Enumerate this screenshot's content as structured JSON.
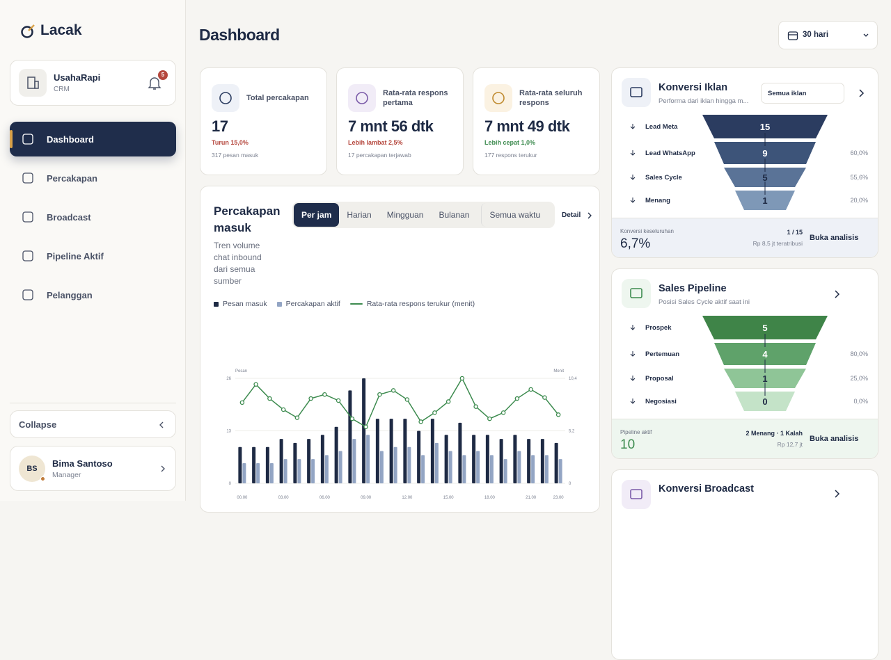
{
  "sidebar": {
    "logo": "Lacak",
    "org": {
      "name": "UsahaRapi",
      "role": "CRM",
      "badge": "5"
    },
    "nav": [
      "Dashboard",
      "Percakapan",
      "Broadcast",
      "Pipeline Aktif",
      "Pelanggan"
    ],
    "active": 0,
    "collapse": "Collapse",
    "user": {
      "initials": "BS",
      "name": "Bima Santoso",
      "role": "Manager"
    }
  },
  "header": {
    "title": "Dashboard",
    "range": "30 hari"
  },
  "stats": [
    {
      "label": "Total percakapan",
      "value": "17",
      "delta": "Turun 15,0%",
      "tone": "bad",
      "note": "317 pesan masuk"
    },
    {
      "label": "Rata-rata respons pertama",
      "value": "7 mnt 56 dtk",
      "delta": "Lebih lambat 2,5%",
      "tone": "bad",
      "note": "17 percakapan terjawab"
    },
    {
      "label": "Rata-rata seluruh respons",
      "value": "7 mnt 49 dtk",
      "delta": "Lebih cepat 1,0%",
      "tone": "good",
      "note": "177 respons terukur"
    }
  ],
  "chart_card": {
    "title": "Percakapan masuk",
    "description": "Tren volume chat inbound dari semua sumber",
    "tabs": [
      "Per jam",
      "Harian",
      "Mingguan",
      "Bulanan",
      "Semua waktu"
    ],
    "active_tab": 0,
    "detail": "Detail"
  },
  "chart_data": {
    "type": "bar",
    "y_label": "Pesan",
    "y2_label": "Menit",
    "categories": [
      "00.00",
      null,
      null,
      "03.00",
      null,
      null,
      "06.00",
      null,
      null,
      "09.00",
      null,
      null,
      "12.00",
      null,
      null,
      "15.00",
      null,
      null,
      "18.00",
      null,
      null,
      "21.00",
      null,
      "23.00"
    ],
    "series": [
      {
        "name": "Pesan masuk",
        "type": "bar",
        "color": "#1e2a44",
        "values": [
          9,
          9,
          9,
          11,
          10,
          11,
          12,
          14,
          23,
          26,
          16,
          16,
          16,
          13,
          16,
          12,
          15,
          12,
          12,
          11,
          12,
          11,
          11,
          10
        ]
      },
      {
        "name": "Percakapan aktif",
        "type": "bar",
        "color": "#93a5c4",
        "values": [
          5,
          5,
          5,
          6,
          6,
          6,
          7,
          8,
          11,
          12,
          8,
          9,
          9,
          7,
          10,
          8,
          7,
          8,
          7,
          6,
          8,
          7,
          7,
          6
        ]
      },
      {
        "name": "Rata-rata respons terukur (menit)",
        "type": "line",
        "axis": "y2",
        "color": "#3d8b4f",
        "values": [
          8.0,
          9.8,
          8.4,
          7.3,
          6.5,
          8.4,
          8.8,
          8.2,
          6.4,
          5.6,
          8.8,
          9.2,
          8.3,
          6.1,
          7.0,
          8.1,
          10.4,
          7.6,
          6.4,
          7.0,
          8.4,
          9.3,
          8.5,
          6.8
        ]
      }
    ],
    "ylim": [
      0,
      26
    ],
    "yticks": [
      0,
      13,
      26
    ],
    "y2lim": [
      0,
      10.4
    ],
    "y2ticks": [
      0,
      {
        "value": 5.2,
        "label": "5,2"
      },
      {
        "value": 10.4,
        "label": "10,4"
      }
    ],
    "grid": true
  },
  "funnels": [
    {
      "title": "Konversi Iklan",
      "subtitle": "Performa dari iklan hingga m...",
      "select": "Semua iklan",
      "theme": "navy",
      "stages": [
        {
          "label": "Lead Meta",
          "value": "15"
        },
        {
          "label": "Lead WhatsApp",
          "value": "9",
          "rate": "60,0%"
        },
        {
          "label": "Sales Cycle",
          "value": "5",
          "rate": "55,6%"
        },
        {
          "label": "Menang",
          "value": "1",
          "rate": "20,0%"
        }
      ],
      "footer": {
        "label": "Konversi keseluruhan",
        "value": "6,7%",
        "right_top": "1 / 15",
        "right_bottom": "Rp 8,5 jt teratribusi",
        "action": "Buka analisis"
      }
    },
    {
      "title": "Sales Pipeline",
      "subtitle": "Posisi Sales Cycle aktif saat ini",
      "theme": "green",
      "stages": [
        {
          "label": "Prospek",
          "value": "5"
        },
        {
          "label": "Pertemuan",
          "value": "4",
          "rate": "80,0%"
        },
        {
          "label": "Proposal",
          "value": "1",
          "rate": "25,0%"
        },
        {
          "label": "Negosiasi",
          "value": "0",
          "rate": "0,0%"
        }
      ],
      "footer": {
        "label": "Pipeline aktif",
        "value": "10",
        "right_top": "2 Menang · 1 Kalah",
        "right_bottom": "Rp 12,7 jt",
        "action": "Buka analisis"
      }
    },
    {
      "title": "Konversi Broadcast",
      "theme": "purple"
    }
  ]
}
